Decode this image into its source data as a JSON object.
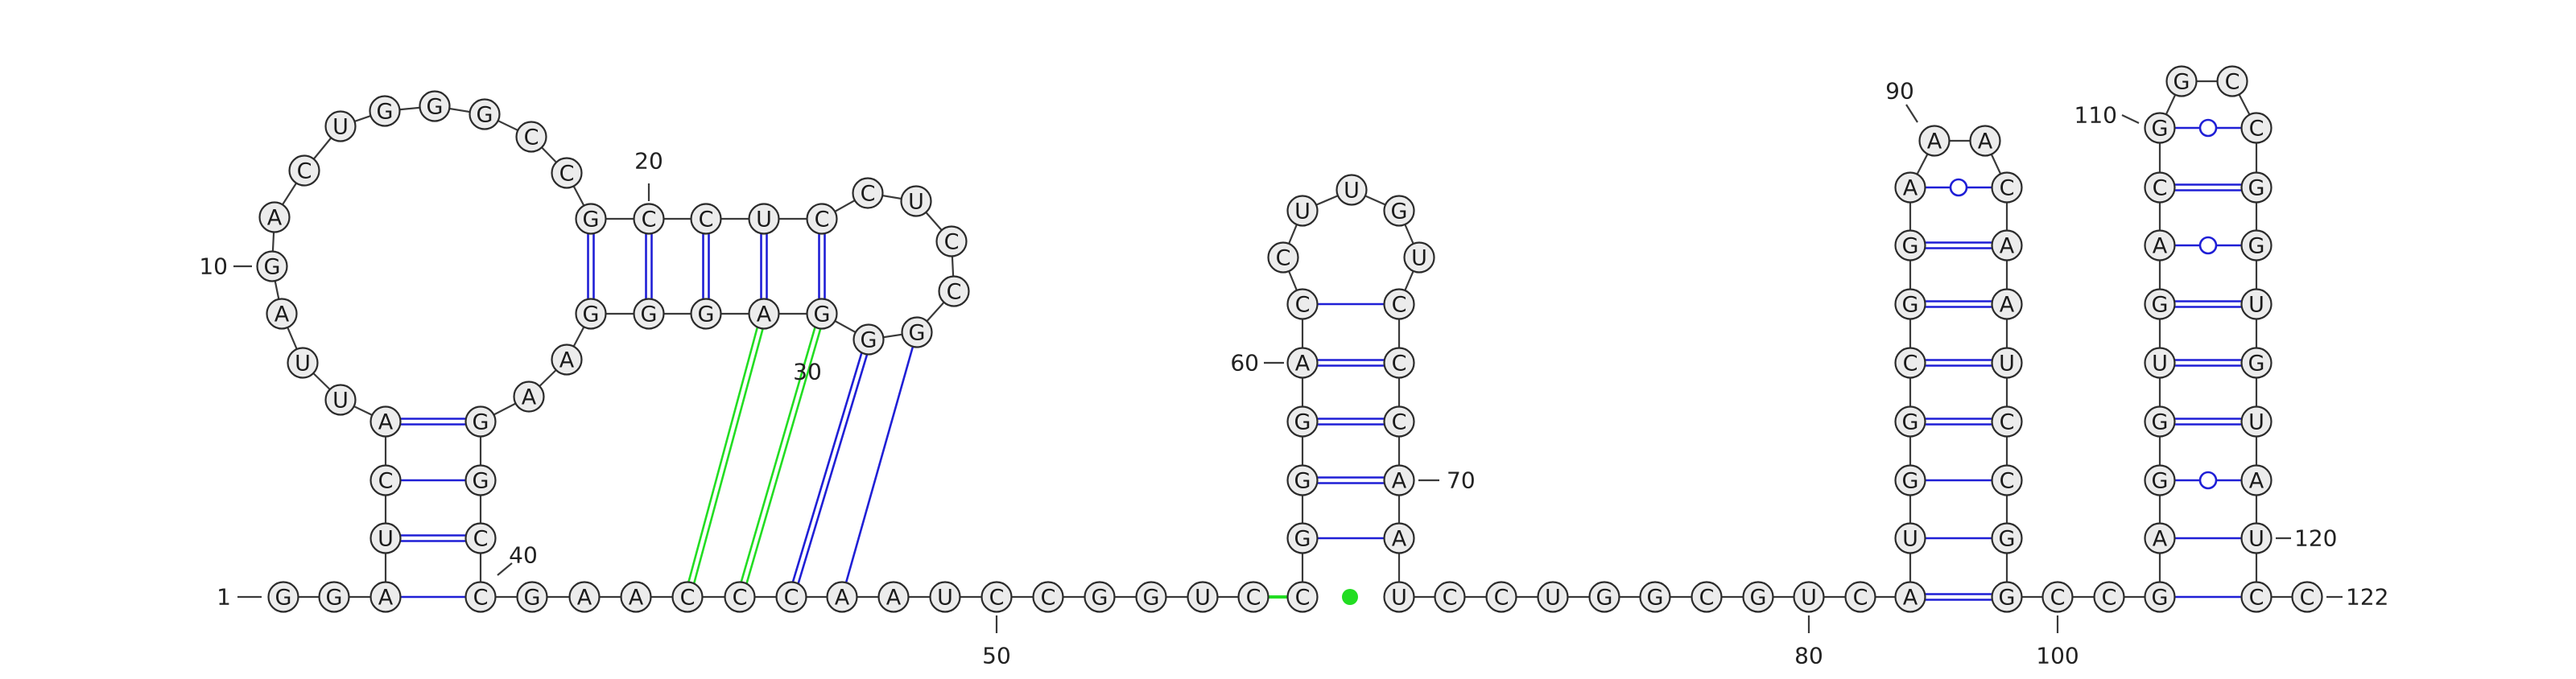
{
  "colors": {
    "canonical_pair": "#1f1fd6",
    "pseudoknot_pair": "#22dd22",
    "backbone": "#3a3a3a",
    "nucleotide_fill": "#ececec"
  },
  "sequence": "GGAUCAUUAGACUGGGCCGCCUCCUCCGGGAGGGAAGGCCGAACCCAAUCCGGUCCGGGACCUUGUCCCAAUCCUGGCGUCAUGGCGGAAACAAUCCGGCCGAGGUGACGGCCGGUGUAUCC",
  "labels": [
    {
      "text": "1"
    },
    {
      "text": "10"
    },
    {
      "text": "20"
    },
    {
      "text": "30"
    },
    {
      "text": "40"
    },
    {
      "text": "50"
    },
    {
      "text": "60"
    },
    {
      "text": "70"
    },
    {
      "text": "80"
    },
    {
      "text": "90"
    },
    {
      "text": "100"
    },
    {
      "text": "110"
    },
    {
      "text": "120"
    },
    {
      "text": "122"
    }
  ]
}
